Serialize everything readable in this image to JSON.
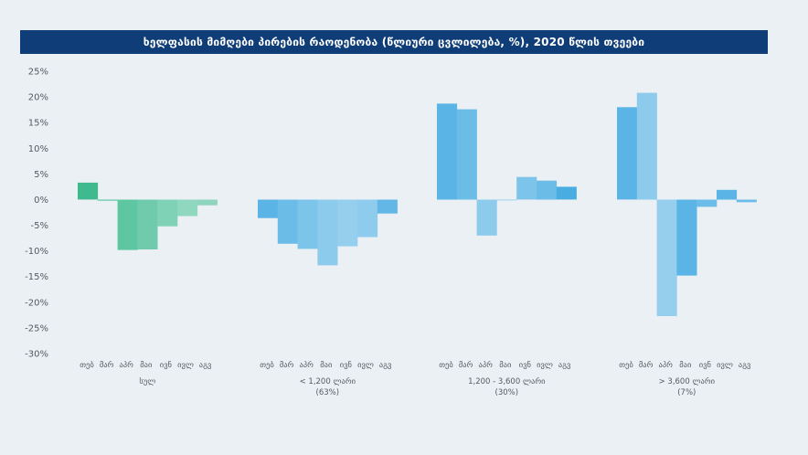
{
  "chart_data": {
    "type": "bar",
    "title": "ხელფასის მიმღები პირების რაოდენობა (წლიური ცვლილება, %), 2020 წლის თვეები",
    "ylim": [
      -30,
      25
    ],
    "yticks": [
      "25%",
      "20%",
      "15%",
      "10%",
      "5%",
      "0%",
      "-5%",
      "-10%",
      "-15%",
      "-20%",
      "-25%",
      "-30%"
    ],
    "categories": [
      "თებ",
      "მარ",
      "აპრ",
      "მაი",
      "ივნ",
      "ივლ",
      "აგვ"
    ],
    "grid": false,
    "groups": [
      {
        "label": "სულ",
        "sublabel": "",
        "values": [
          3.3,
          -0.2,
          -9.8,
          -9.7,
          -5.2,
          -3.2,
          -1.1
        ],
        "colors": [
          "#3fba8f",
          "#52c29c",
          "#5fc6a2",
          "#6fcbab",
          "#7fd2b5",
          "#8fd8bf",
          "#8fd5bd"
        ]
      },
      {
        "label": "< 1,200 ლარი",
        "sublabel": "(63%)",
        "values": [
          -3.6,
          -8.6,
          -9.6,
          -12.8,
          -9.1,
          -7.3,
          -2.7
        ],
        "colors": [
          "#5ab4e5",
          "#6bbde8",
          "#7cc4ea",
          "#8dcbec",
          "#96cfee",
          "#8ecbec",
          "#62b7e6"
        ]
      },
      {
        "label": "1,200 - 3,600 ლარი",
        "sublabel": "(30%)",
        "values": [
          18.7,
          17.6,
          -7.0,
          -0.1,
          4.4,
          3.7,
          2.5
        ],
        "colors": [
          "#5ab4e5",
          "#6bbde8",
          "#8dcbec",
          "#8dcbec",
          "#7cc4ea",
          "#6bbde8",
          "#4aade2"
        ]
      },
      {
        "label": "> 3,600 ლარი",
        "sublabel": "(7%)",
        "values": [
          18.0,
          20.8,
          -22.7,
          -14.8,
          -1.4,
          1.9,
          -0.5
        ],
        "colors": [
          "#5ab4e5",
          "#8dcbec",
          "#96cfee",
          "#5ab4e5",
          "#6bbde8",
          "#5ab4e5",
          "#6bbde8"
        ]
      }
    ]
  }
}
